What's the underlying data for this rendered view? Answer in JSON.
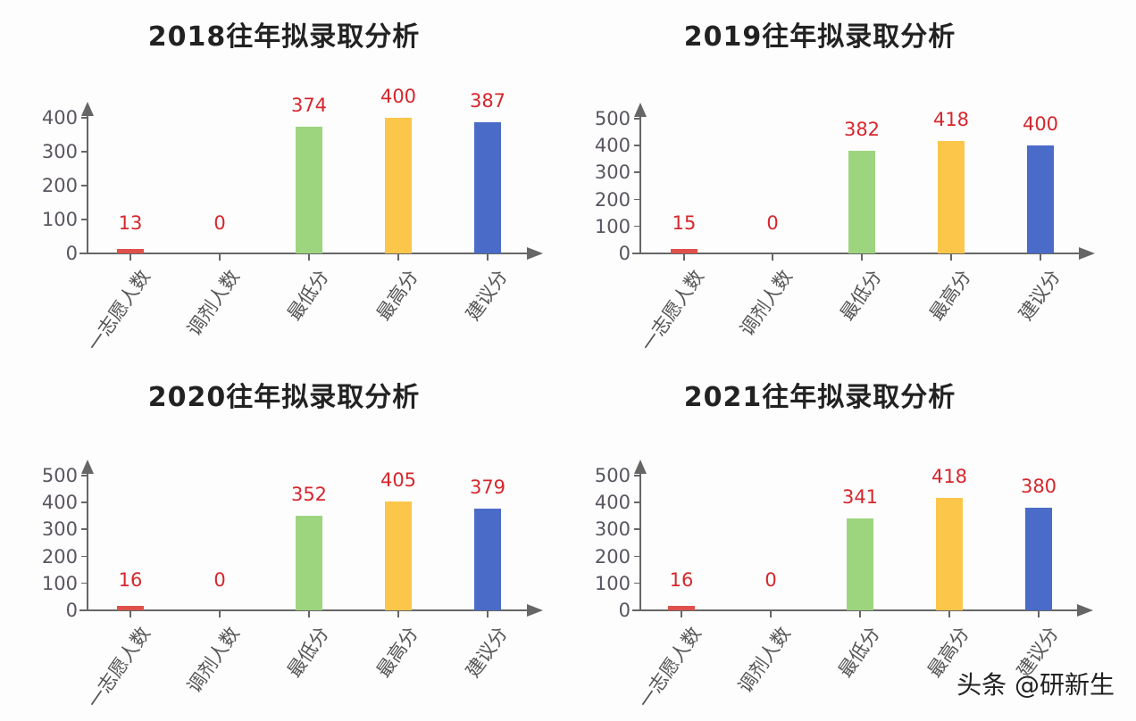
{
  "watermark": "头条 @研新生",
  "colors": {
    "bar_first_choice": "#e0504a",
    "bar_adjusted": "#e0504a",
    "bar_min_score": "#9dd57e",
    "bar_max_score": "#fcc64a",
    "bar_suggested": "#4a6cc8",
    "value_label": "#d6262c",
    "axis": "#666666"
  },
  "chart_data": [
    {
      "type": "bar",
      "title": "2018往年拟录取分析",
      "categories": [
        "一志愿人数",
        "调剂人数",
        "最低分",
        "最高分",
        "建议分"
      ],
      "values": [
        13,
        0,
        374,
        400,
        387
      ],
      "value_labels": [
        "13",
        "0",
        "374",
        "400",
        "387"
      ],
      "xlabel": "",
      "ylabel": "",
      "yticks": [
        "0",
        "100",
        "200",
        "300",
        "400"
      ],
      "ylim": [
        0,
        400
      ],
      "grid": false,
      "legend": "none"
    },
    {
      "type": "bar",
      "title": "2019往年拟录取分析",
      "categories": [
        "一志愿人数",
        "调剂人数",
        "最低分",
        "最高分",
        "建议分"
      ],
      "values": [
        15,
        0,
        382,
        418,
        400
      ],
      "value_labels": [
        "15",
        "0",
        "382",
        "418",
        "400"
      ],
      "xlabel": "",
      "ylabel": "",
      "yticks": [
        "0",
        "100",
        "200",
        "300",
        "400",
        "500"
      ],
      "ylim": [
        0,
        500
      ],
      "grid": false,
      "legend": "none"
    },
    {
      "type": "bar",
      "title": "2020往年拟录取分析",
      "categories": [
        "一志愿人数",
        "调剂人数",
        "最低分",
        "最高分",
        "建议分"
      ],
      "values": [
        16,
        0,
        352,
        405,
        379
      ],
      "value_labels": [
        "16",
        "0",
        "352",
        "405",
        "379"
      ],
      "xlabel": "",
      "ylabel": "",
      "yticks": [
        "0",
        "100",
        "200",
        "300",
        "400",
        "500"
      ],
      "ylim": [
        0,
        500
      ],
      "grid": false,
      "legend": "none"
    },
    {
      "type": "bar",
      "title": "2021往年拟录取分析",
      "categories": [
        "一志愿人数",
        "调剂人数",
        "最低分",
        "最高分",
        "建议分"
      ],
      "values": [
        16,
        0,
        341,
        418,
        380
      ],
      "value_labels": [
        "16",
        "0",
        "341",
        "418",
        "380"
      ],
      "xlabel": "",
      "ylabel": "",
      "yticks": [
        "0",
        "100",
        "200",
        "300",
        "400",
        "500"
      ],
      "ylim": [
        0,
        500
      ],
      "grid": false,
      "legend": "none"
    }
  ]
}
